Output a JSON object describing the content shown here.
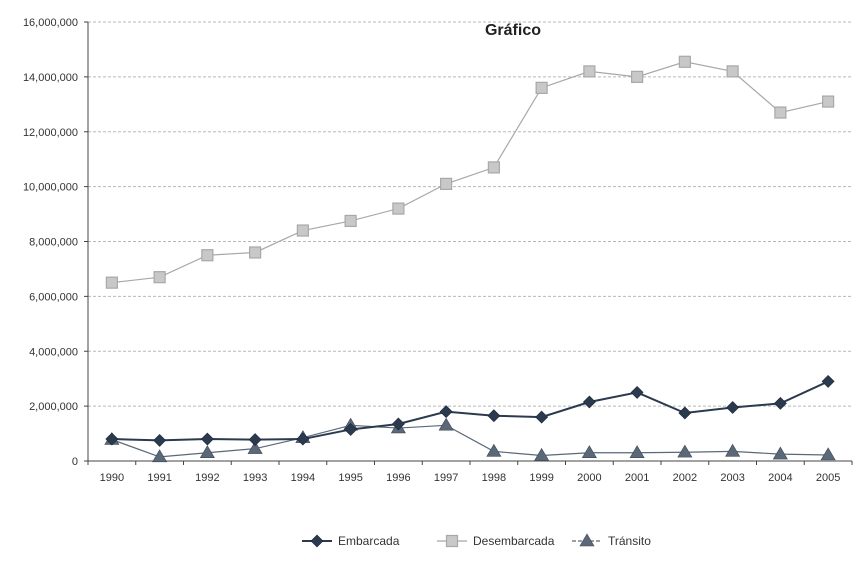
{
  "chart_data": {
    "type": "line",
    "title": "Gráfico",
    "xlabel": "",
    "ylabel": "",
    "categories": [
      "1990",
      "1991",
      "1992",
      "1993",
      "1994",
      "1995",
      "1996",
      "1997",
      "1998",
      "1999",
      "2000",
      "2001",
      "2002",
      "2003",
      "2004",
      "2005"
    ],
    "ylim": [
      0,
      16000000
    ],
    "yticks": [
      0,
      2000000,
      4000000,
      6000000,
      8000000,
      10000000,
      12000000,
      14000000,
      16000000
    ],
    "ytick_labels": [
      "0",
      "2,000,000",
      "4,000,000",
      "6,000,000",
      "8,000,000",
      "10,000,000",
      "12,000,000",
      "14,000,000",
      "16,000,000"
    ],
    "grid": "horizontal dashed",
    "legend_position": "bottom",
    "series": [
      {
        "name": "Embarcada",
        "marker": "diamond",
        "color": "#2b3a4f",
        "values": [
          800000,
          750000,
          800000,
          780000,
          800000,
          1150000,
          1350000,
          1800000,
          1650000,
          1600000,
          2150000,
          2500000,
          1750000,
          1950000,
          2100000,
          2900000
        ]
      },
      {
        "name": "Desembarcada",
        "marker": "square",
        "color": "#a8a8a8",
        "values": [
          6500000,
          6700000,
          7500000,
          7600000,
          8400000,
          8750000,
          9200000,
          10100000,
          10700000,
          13600000,
          14200000,
          14000000,
          14550000,
          14200000,
          12700000,
          13100000
        ]
      },
      {
        "name": "Tránsito",
        "marker": "triangle",
        "color": "#5a6878",
        "values": [
          780000,
          150000,
          300000,
          450000,
          850000,
          1300000,
          1200000,
          1300000,
          350000,
          200000,
          300000,
          300000,
          320000,
          350000,
          250000,
          220000
        ]
      }
    ]
  }
}
